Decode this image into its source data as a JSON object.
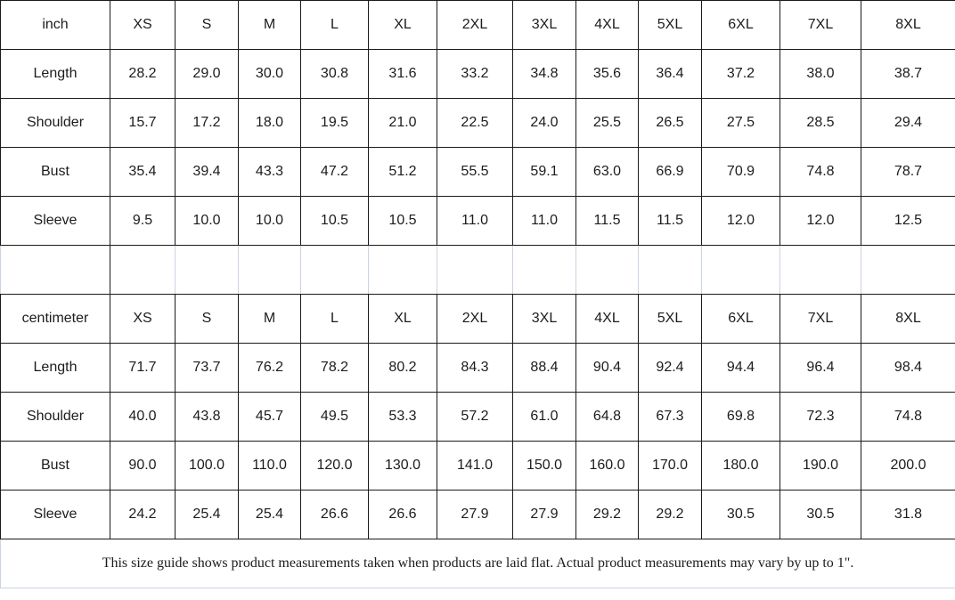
{
  "colors": {
    "page_bg": "#ffffff",
    "header_bg": "#f2f2f2",
    "label_bg": "#f2f2f2",
    "grid_dark": "#1a1a1a",
    "grid_light": "#ccd3e2",
    "text": "#1c1c1c"
  },
  "size_columns": [
    "XS",
    "S",
    "M",
    "L",
    "XL",
    "2XL",
    "3XL",
    "4XL",
    "5XL",
    "6XL",
    "7XL",
    "8XL"
  ],
  "tables": [
    {
      "unit_label": "inch",
      "rows": [
        {
          "label": "Length",
          "values": [
            "28.2",
            "29.0",
            "30.0",
            "30.8",
            "31.6",
            "33.2",
            "34.8",
            "35.6",
            "36.4",
            "37.2",
            "38.0",
            "38.7"
          ]
        },
        {
          "label": "Shoulder",
          "values": [
            "15.7",
            "17.2",
            "18.0",
            "19.5",
            "21.0",
            "22.5",
            "24.0",
            "25.5",
            "26.5",
            "27.5",
            "28.5",
            "29.4"
          ]
        },
        {
          "label": "Bust",
          "values": [
            "35.4",
            "39.4",
            "43.3",
            "47.2",
            "51.2",
            "55.5",
            "59.1",
            "63.0",
            "66.9",
            "70.9",
            "74.8",
            "78.7"
          ]
        },
        {
          "label": "Sleeve",
          "values": [
            "9.5",
            "10.0",
            "10.0",
            "10.5",
            "10.5",
            "11.0",
            "11.0",
            "11.5",
            "11.5",
            "12.0",
            "12.0",
            "12.5"
          ]
        }
      ]
    },
    {
      "unit_label": "centimeter",
      "rows": [
        {
          "label": "Length",
          "values": [
            "71.7",
            "73.7",
            "76.2",
            "78.2",
            "80.2",
            "84.3",
            "88.4",
            "90.4",
            "92.4",
            "94.4",
            "96.4",
            "98.4"
          ]
        },
        {
          "label": "Shoulder",
          "values": [
            "40.0",
            "43.8",
            "45.7",
            "49.5",
            "53.3",
            "57.2",
            "61.0",
            "64.8",
            "67.3",
            "69.8",
            "72.3",
            "74.8"
          ]
        },
        {
          "label": "Bust",
          "values": [
            "90.0",
            "100.0",
            "110.0",
            "120.0",
            "130.0",
            "141.0",
            "150.0",
            "160.0",
            "170.0",
            "180.0",
            "190.0",
            "200.0"
          ]
        },
        {
          "label": "Sleeve",
          "values": [
            "24.2",
            "25.4",
            "25.4",
            "26.6",
            "26.6",
            "27.9",
            "27.9",
            "29.2",
            "29.2",
            "30.5",
            "30.5",
            "31.8"
          ]
        }
      ]
    }
  ],
  "footer": {
    "note": "This size guide shows product measurements taken when products are laid flat. Actual product measurements may vary by up to 1\"."
  }
}
